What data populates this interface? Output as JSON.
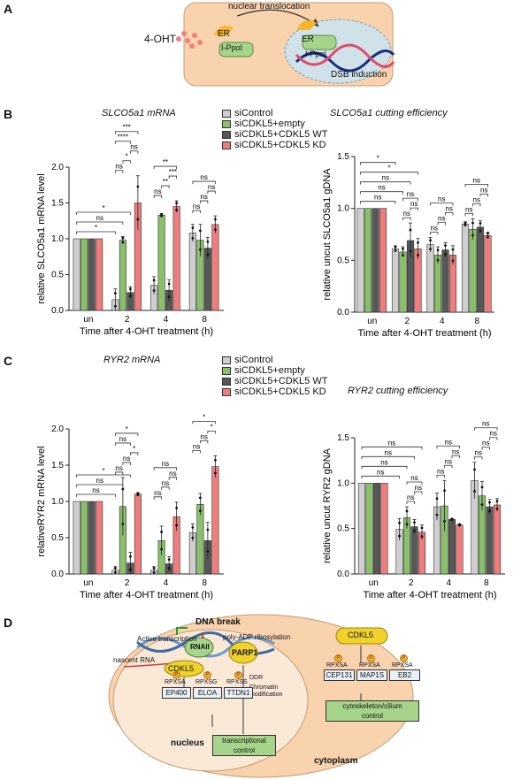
{
  "panels": {
    "a": "A",
    "b": "B",
    "c": "C",
    "d": "D"
  },
  "colors": {
    "siControl": "#cfcfcf",
    "siCDKL5_empty": "#8ac06a",
    "siCDKL5_WT": "#575757",
    "siCDKL5_KD": "#ef7d7d",
    "cell": "#f9d3ae",
    "nucleus": "#cfe2ea"
  },
  "legend": [
    "siControl",
    "siCDKL5+empty",
    "siCDKL5+CDKL5 WT",
    "siCDKL5+CDKL5 KD"
  ],
  "panelA": {
    "compound": "4-OHT",
    "arrow_label": "nuclear translocation",
    "er": "ER",
    "ippol": "I-PpoI",
    "dsb": "DSB induction"
  },
  "chart_data": [
    {
      "id": "slco_mrna",
      "type": "bar",
      "title": "SLCO5a1 mRNA",
      "xlabel": "Time after 4-OHT treatment (h)",
      "ylabel": "relative SLCO5a1 mRNA level",
      "categories": [
        "un",
        "2",
        "4",
        "8"
      ],
      "ylim": [
        0,
        2.0
      ],
      "yticks": [
        "0.0",
        "0.5",
        "1.0",
        "1.5",
        "2.0"
      ],
      "series": [
        {
          "name": "siControl",
          "values": [
            1.0,
            0.15,
            0.35,
            1.08
          ],
          "err": [
            0,
            0.15,
            0.12,
            0.12
          ]
        },
        {
          "name": "siCDKL5+empty",
          "values": [
            1.0,
            0.98,
            1.33,
            0.98
          ],
          "err": [
            0,
            0.05,
            0.02,
            0.22
          ]
        },
        {
          "name": "siCDKL5+CDKL5 WT",
          "values": [
            1.0,
            0.25,
            0.28,
            0.87
          ],
          "err": [
            0,
            0.08,
            0.15,
            0.15
          ]
        },
        {
          "name": "siCDKL5+CDKL5 KD",
          "values": [
            1.0,
            1.5,
            1.45,
            1.2
          ],
          "err": [
            0,
            0.38,
            0.08,
            0.12
          ]
        }
      ],
      "significance": [
        {
          "cat": 1,
          "from": 0,
          "to": 3,
          "text": "***"
        },
        {
          "cat": 1,
          "from": 0,
          "to": 2,
          "text": "****"
        },
        {
          "cat": 1,
          "from": 0,
          "to": 1,
          "text": "ns"
        },
        {
          "cat": 1,
          "from": 1,
          "to": 2,
          "text": "*"
        },
        {
          "cat": 1,
          "from": 2,
          "to": 3,
          "text": "ns"
        },
        {
          "cat": 2,
          "from": 0,
          "to": 3,
          "text": "**"
        },
        {
          "cat": 2,
          "from": 0,
          "to": 1,
          "text": "ns"
        },
        {
          "cat": 2,
          "from": 1,
          "to": 2,
          "text": "**"
        },
        {
          "cat": 2,
          "from": 2,
          "to": 3,
          "text": "***"
        },
        {
          "cat": 3,
          "from": 0,
          "to": 3,
          "text": "ns"
        },
        {
          "cat": 3,
          "from": 0,
          "to": 1,
          "text": "ns"
        },
        {
          "cat": 3,
          "from": 1,
          "to": 2,
          "text": "ns"
        },
        {
          "cat": 3,
          "from": 2,
          "to": 3,
          "text": "ns"
        }
      ],
      "from_un": [
        {
          "to_cat": 1,
          "text": "*"
        },
        {
          "to_cat": 1,
          "text": "ns"
        },
        {
          "to_cat": 1,
          "text": "*"
        }
      ]
    },
    {
      "id": "slco_cut",
      "type": "bar",
      "title": "SLCO5a1 cutting efficiency",
      "xlabel": "Time after 4-OHT treatment (h)",
      "ylabel": "relative uncut SLCO5a1 gDNA",
      "categories": [
        "un",
        "2",
        "4",
        "8"
      ],
      "ylim": [
        0,
        1.5
      ],
      "yticks": [
        "0.0",
        "0.5",
        "1.0",
        "1.5"
      ],
      "series": [
        {
          "name": "siControl",
          "values": [
            1.0,
            0.61,
            0.65,
            0.85
          ],
          "err": [
            0,
            0.03,
            0.07,
            0.02
          ]
        },
        {
          "name": "siCDKL5+empty",
          "values": [
            1.0,
            0.58,
            0.55,
            0.8
          ],
          "err": [
            0,
            0.05,
            0.08,
            0.1
          ]
        },
        {
          "name": "siCDKL5+CDKL5 WT",
          "values": [
            1.0,
            0.69,
            0.6,
            0.82
          ],
          "err": [
            0,
            0.17,
            0.07,
            0.06
          ]
        },
        {
          "name": "siCDKL5+CDKL5 KD",
          "values": [
            1.0,
            0.61,
            0.55,
            0.74
          ],
          "err": [
            0,
            0.1,
            0.09,
            0.03
          ]
        }
      ],
      "significance": [
        {
          "cat": 1,
          "from": 1,
          "to": 3,
          "text": "ns"
        },
        {
          "cat": 1,
          "from": 1,
          "to": 2,
          "text": "ns"
        },
        {
          "cat": 1,
          "from": 2,
          "to": 3,
          "text": "ns"
        },
        {
          "cat": 2,
          "from": 0,
          "to": 3,
          "text": "ns"
        },
        {
          "cat": 2,
          "from": 0,
          "to": 1,
          "text": "ns"
        },
        {
          "cat": 2,
          "from": 1,
          "to": 2,
          "text": "ns"
        },
        {
          "cat": 2,
          "from": 2,
          "to": 3,
          "text": "ns"
        },
        {
          "cat": 3,
          "from": 0,
          "to": 3,
          "text": "ns"
        },
        {
          "cat": 3,
          "from": 0,
          "to": 1,
          "text": "ns"
        },
        {
          "cat": 3,
          "from": 1,
          "to": 2,
          "text": "ns"
        },
        {
          "cat": 3,
          "from": 2,
          "to": 3,
          "text": "ns"
        }
      ],
      "from_un": [
        {
          "to_cat": 1,
          "text": "ns"
        },
        {
          "to_cat": 1,
          "text": "ns"
        },
        {
          "to_cat": 1,
          "text": "ns"
        },
        {
          "to_cat": 1,
          "text": "*"
        },
        {
          "to_cat": 1,
          "text": "*"
        }
      ]
    },
    {
      "id": "ryr_mrna",
      "type": "bar",
      "title": "RYR2 mRNA",
      "xlabel": "Time after 4-OHT treatment (h)",
      "ylabel": "relativeRYR2 mRNA level",
      "categories": [
        "un",
        "2",
        "4",
        "8"
      ],
      "ylim": [
        0,
        2.0
      ],
      "yticks": [
        "0.0",
        "0.5",
        "1.0",
        "1.5",
        "2.0"
      ],
      "series": [
        {
          "name": "siControl",
          "values": [
            1.0,
            0.05,
            0.05,
            0.57
          ],
          "err": [
            0,
            0.05,
            0.05,
            0.12
          ]
        },
        {
          "name": "siCDKL5+empty",
          "values": [
            1.0,
            0.93,
            0.46,
            0.96
          ],
          "err": [
            0,
            0.4,
            0.2,
            0.15
          ]
        },
        {
          "name": "siCDKL5+CDKL5 WT",
          "values": [
            1.0,
            0.15,
            0.14,
            0.46
          ],
          "err": [
            0,
            0.15,
            0.1,
            0.25
          ]
        },
        {
          "name": "siCDKL5+CDKL5 KD",
          "values": [
            1.0,
            1.1,
            0.79,
            1.48
          ],
          "err": [
            0,
            0.02,
            0.2,
            0.15
          ]
        }
      ],
      "significance": [
        {
          "cat": 1,
          "from": 0,
          "to": 3,
          "text": "*"
        },
        {
          "cat": 1,
          "from": 0,
          "to": 2,
          "text": "ns"
        },
        {
          "cat": 1,
          "from": 0,
          "to": 1,
          "text": "ns"
        },
        {
          "cat": 1,
          "from": 1,
          "to": 2,
          "text": "ns"
        },
        {
          "cat": 1,
          "from": 2,
          "to": 3,
          "text": "*"
        },
        {
          "cat": 2,
          "from": 0,
          "to": 3,
          "text": "ns"
        },
        {
          "cat": 2,
          "from": 0,
          "to": 1,
          "text": "ns"
        },
        {
          "cat": 2,
          "from": 1,
          "to": 2,
          "text": "ns"
        },
        {
          "cat": 2,
          "from": 2,
          "to": 3,
          "text": "ns"
        },
        {
          "cat": 3,
          "from": 0,
          "to": 3,
          "text": "*"
        },
        {
          "cat": 3,
          "from": 0,
          "to": 1,
          "text": "ns"
        },
        {
          "cat": 3,
          "from": 1,
          "to": 2,
          "text": "ns"
        },
        {
          "cat": 3,
          "from": 2,
          "to": 3,
          "text": "*"
        }
      ],
      "from_un": [
        {
          "to_cat": 1,
          "text": "ns"
        },
        {
          "to_cat": 1,
          "text": "ns"
        },
        {
          "to_cat": 1,
          "text": "*"
        }
      ]
    },
    {
      "id": "ryr_cut",
      "type": "bar",
      "title": "RYR2 cutting efficiency",
      "xlabel": "Time after 4-OHT treatment (h)",
      "ylabel": "relative uncut RYR2 gDNA",
      "categories": [
        "un",
        "2",
        "4",
        "8"
      ],
      "ylim": [
        0,
        1.5
      ],
      "yticks": [
        "0.0",
        "0.5",
        "1.0",
        "1.5"
      ],
      "series": [
        {
          "name": "siControl",
          "values": [
            1.0,
            0.49,
            0.74,
            1.03
          ],
          "err": [
            0,
            0.12,
            0.15,
            0.2
          ]
        },
        {
          "name": "siCDKL5+empty",
          "values": [
            1.0,
            0.62,
            0.75,
            0.86
          ],
          "err": [
            0,
            0.12,
            0.28,
            0.16
          ]
        },
        {
          "name": "siCDKL5+CDKL5 WT",
          "values": [
            1.0,
            0.52,
            0.6,
            0.74
          ],
          "err": [
            0,
            0.08,
            0.01,
            0.08
          ]
        },
        {
          "name": "siCDKL5+CDKL5 KD",
          "values": [
            1.0,
            0.46,
            0.54,
            0.76
          ],
          "err": [
            0,
            0.08,
            0.01,
            0.07
          ]
        }
      ],
      "significance": [
        {
          "cat": 1,
          "from": 1,
          "to": 3,
          "text": "ns"
        },
        {
          "cat": 1,
          "from": 1,
          "to": 2,
          "text": "ns"
        },
        {
          "cat": 1,
          "from": 2,
          "to": 3,
          "text": "ns"
        },
        {
          "cat": 2,
          "from": 0,
          "to": 3,
          "text": "ns"
        },
        {
          "cat": 2,
          "from": 0,
          "to": 1,
          "text": "ns"
        },
        {
          "cat": 2,
          "from": 1,
          "to": 2,
          "text": "ns"
        },
        {
          "cat": 2,
          "from": 2,
          "to": 3,
          "text": "ns"
        },
        {
          "cat": 3,
          "from": 0,
          "to": 3,
          "text": "ns"
        },
        {
          "cat": 3,
          "from": 0,
          "to": 1,
          "text": "ns"
        },
        {
          "cat": 3,
          "from": 1,
          "to": 2,
          "text": "ns"
        },
        {
          "cat": 3,
          "from": 2,
          "to": 3,
          "text": "ns"
        }
      ],
      "from_un": [
        {
          "to_cat": 1,
          "text": "ns"
        },
        {
          "to_cat": 1,
          "text": "ns"
        },
        {
          "to_cat": 1,
          "text": "ns"
        },
        {
          "to_cat": 1,
          "text": "ns"
        }
      ]
    }
  ],
  "panelD": {
    "dna_break": "DNA break",
    "active_transcription": "Active transcription",
    "parylation": "poly-ADP ribosylation",
    "rnaii": "RNAII",
    "parp1": "PARP1",
    "nascent_rna": "nascent RNA",
    "cdkl5": "CDKL5",
    "ddr": "DDR",
    "chromatin": "Chromatin\nmodification",
    "substrates_nuc": [
      {
        "site": "RPXSA",
        "name": "EP400"
      },
      {
        "site": "RPXSG",
        "name": "ELOA"
      },
      {
        "site": "RPXSS",
        "name": "TTDN1"
      }
    ],
    "substrates_cyto": [
      {
        "site": "RPXSA",
        "name": "CEP131"
      },
      {
        "site": "RPXSA",
        "name": "MAP1S"
      },
      {
        "site": "RPXSA",
        "name": "EB2"
      }
    ],
    "p_label": "P",
    "transcriptional": "transcriptional\ncontrol",
    "cytoskeleton": "cytoskeleton/cilium\ncontrol",
    "nucleus": "nucleus",
    "cytoplasm": "cytoplasm"
  }
}
